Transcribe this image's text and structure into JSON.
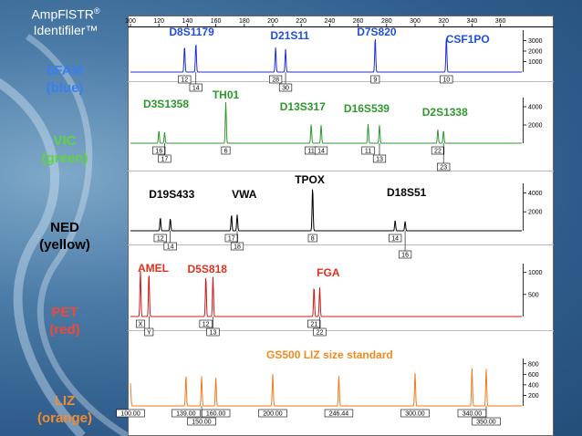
{
  "brand": {
    "name": "AmpFlSTR",
    "reg": "®",
    "product": "Identifiler™"
  },
  "dyes": [
    {
      "name": "6FAM",
      "color_name": "(blue)",
      "color": "#2f6fe0"
    },
    {
      "name": "VIC",
      "color_name": "(green)",
      "color": "#58c83a"
    },
    {
      "name": "NED",
      "color_name": "(yellow)",
      "color": "#000000"
    },
    {
      "name": "PET",
      "color_name": "(red)",
      "color": "#e23b2a"
    },
    {
      "name": "LIZ",
      "color_name": "(orange)",
      "color": "#f08a2a"
    }
  ],
  "chart_data": {
    "type": "line",
    "title": "",
    "xlabel": "",
    "x_ticks": [
      100,
      120,
      140,
      160,
      180,
      200,
      220,
      240,
      260,
      280,
      300,
      320,
      340,
      360
    ],
    "xlim": [
      100,
      375
    ],
    "channels": [
      {
        "dye": "6FAM",
        "color": "#1e2fd0",
        "ylim": [
          0,
          4000
        ],
        "y_ticks": [
          "3000",
          "2000",
          "1000"
        ],
        "y_tick_values": [
          3000,
          2000,
          1000
        ],
        "markers": [
          {
            "name": "D8S1179",
            "x": 143
          },
          {
            "name": "D21S11",
            "x": 212
          },
          {
            "name": "D7S820",
            "x": 273
          },
          {
            "name": "CSF1PO",
            "x": 337
          }
        ],
        "peaks": [
          {
            "x": 138,
            "y": 2500,
            "allele": "12",
            "row": 1
          },
          {
            "x": 146,
            "y": 2800,
            "allele": "14",
            "row": 2
          },
          {
            "x": 202,
            "y": 2400,
            "allele": "28",
            "row": 1
          },
          {
            "x": 209,
            "y": 2200,
            "allele": "30",
            "row": 2
          },
          {
            "x": 272,
            "y": 3300,
            "allele": "9",
            "row": 1
          },
          {
            "x": 322,
            "y": 3400,
            "allele": "10",
            "row": 1
          }
        ]
      },
      {
        "dye": "VIC",
        "color": "#2b9a2b",
        "ylim": [
          0,
          5000
        ],
        "y_ticks": [
          "4000",
          "2000"
        ],
        "y_tick_values": [
          4000,
          2000
        ],
        "markers": [
          {
            "name": "D3S1358",
            "x": 125
          },
          {
            "name": "TH01",
            "x": 167
          },
          {
            "name": "D13S317",
            "x": 221
          },
          {
            "name": "D16S539",
            "x": 266
          },
          {
            "name": "D2S1338",
            "x": 321
          }
        ],
        "peaks": [
          {
            "x": 120,
            "y": 1400,
            "allele": "16",
            "row": 1
          },
          {
            "x": 124,
            "y": 1200,
            "allele": "17",
            "row": 2
          },
          {
            "x": 167,
            "y": 4500,
            "allele": "6",
            "row": 1
          },
          {
            "x": 227,
            "y": 2100,
            "allele": "11",
            "row": 1
          },
          {
            "x": 234,
            "y": 2000,
            "allele": "14",
            "row": 1
          },
          {
            "x": 267,
            "y": 2100,
            "allele": "11",
            "row": 1
          },
          {
            "x": 275,
            "y": 2000,
            "allele": "13",
            "row": 2
          },
          {
            "x": 316,
            "y": 1500,
            "allele": "22",
            "row": 1
          },
          {
            "x": 320,
            "y": 1400,
            "allele": "23",
            "row": 3
          }
        ]
      },
      {
        "dye": "NED",
        "color": "#000000",
        "ylim": [
          0,
          5000
        ],
        "y_ticks": [
          "4000",
          "2000"
        ],
        "y_tick_values": [
          4000,
          2000
        ],
        "markers": [
          {
            "name": "D19S433",
            "x": 129
          },
          {
            "name": "VWA",
            "x": 180
          },
          {
            "name": "TPOX",
            "x": 226
          },
          {
            "name": "D18S51",
            "x": 294
          }
        ],
        "peaks": [
          {
            "x": 121,
            "y": 1400,
            "allele": "12",
            "row": 1
          },
          {
            "x": 128,
            "y": 1300,
            "allele": "14",
            "row": 2
          },
          {
            "x": 171,
            "y": 1700,
            "allele": "17",
            "row": 1
          },
          {
            "x": 175,
            "y": 1700,
            "allele": "18",
            "row": 2
          },
          {
            "x": 228,
            "y": 4600,
            "allele": "8",
            "row": 1
          },
          {
            "x": 286,
            "y": 1100,
            "allele": "14",
            "row": 1
          },
          {
            "x": 293,
            "y": 1000,
            "allele": "16",
            "row": 3
          }
        ]
      },
      {
        "dye": "PET",
        "color": "#d11818",
        "ylim": [
          0,
          1200
        ],
        "y_ticks": [
          "1000",
          "500"
        ],
        "y_tick_values": [
          1000,
          500
        ],
        "markers": [
          {
            "name": "AMEL",
            "x": 116
          },
          {
            "name": "D5S818",
            "x": 154
          },
          {
            "name": "FGA",
            "x": 239
          }
        ],
        "peaks": [
          {
            "x": 107,
            "y": 1050,
            "allele": "X",
            "row": 1
          },
          {
            "x": 113,
            "y": 1000,
            "allele": "Y",
            "row": 2
          },
          {
            "x": 153,
            "y": 920,
            "allele": "12",
            "row": 1
          },
          {
            "x": 158,
            "y": 900,
            "allele": "13",
            "row": 2
          },
          {
            "x": 229,
            "y": 680,
            "allele": "21",
            "row": 1
          },
          {
            "x": 233,
            "y": 660,
            "allele": "22",
            "row": 2
          }
        ]
      },
      {
        "dye": "LIZ",
        "color": "#f07a1a",
        "ylim": [
          0,
          900
        ],
        "y_ticks": [
          "800",
          "600",
          "400",
          "200"
        ],
        "y_tick_values": [
          800,
          600,
          400,
          200
        ],
        "markers": [
          {
            "name": "GS500 LIZ size standard",
            "x": 240
          }
        ],
        "peaks": [
          {
            "x": 100,
            "y": 430,
            "allele": "100.00",
            "row": 1
          },
          {
            "x": 139,
            "y": 580,
            "allele": "139.00",
            "row": 1
          },
          {
            "x": 150,
            "y": 560,
            "allele": "150.00",
            "row": 2
          },
          {
            "x": 160,
            "y": 540,
            "allele": "160.00",
            "row": 1
          },
          {
            "x": 200,
            "y": 600,
            "allele": "200.00",
            "row": 1
          },
          {
            "x": 246.44,
            "y": 570,
            "allele": "246.44",
            "row": 1
          },
          {
            "x": 300,
            "y": 620,
            "allele": "300.00",
            "row": 1
          },
          {
            "x": 340,
            "y": 720,
            "allele": "340.00",
            "row": 1
          },
          {
            "x": 350,
            "y": 700,
            "allele": "350.00",
            "row": 2
          }
        ]
      }
    ]
  }
}
